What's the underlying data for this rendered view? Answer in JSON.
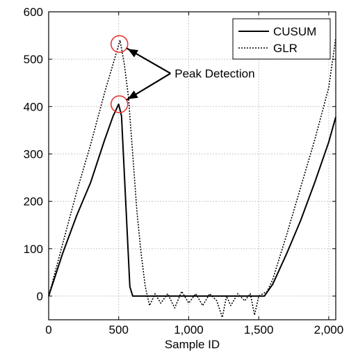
{
  "chart_data": {
    "type": "line",
    "title": "",
    "xlabel": "Sample ID",
    "ylabel": "",
    "xlim": [
      0,
      2050
    ],
    "ylim": [
      -50,
      600
    ],
    "grid": true,
    "legend_position": "top-right",
    "x_ticks": [
      0,
      500,
      1000,
      1500,
      2000
    ],
    "x_tick_labels": [
      "0",
      "500",
      "1,000",
      "1,500",
      "2,000"
    ],
    "y_ticks": [
      0,
      100,
      200,
      300,
      400,
      500,
      600
    ],
    "y_tick_labels": [
      "0",
      "100",
      "200",
      "300",
      "400",
      "500",
      "600"
    ],
    "series": [
      {
        "name": "CUSUM",
        "style": "solid",
        "color": "#000000",
        "x": [
          0,
          100,
          200,
          300,
          400,
          460,
          500,
          520,
          550,
          580,
          600,
          700,
          800,
          900,
          1000,
          1100,
          1200,
          1300,
          1400,
          1500,
          1540,
          1600,
          1700,
          1800,
          1900,
          2000,
          2050
        ],
        "y": [
          0,
          90,
          170,
          240,
          330,
          380,
          405,
          380,
          200,
          20,
          0,
          0,
          0,
          0,
          0,
          0,
          0,
          0,
          0,
          0,
          0,
          25,
          90,
          160,
          240,
          325,
          378
        ]
      },
      {
        "name": "GLR",
        "style": "dotted",
        "color": "#000000",
        "x": [
          0,
          100,
          200,
          300,
          400,
          480,
          510,
          540,
          570,
          600,
          630,
          660,
          690,
          720,
          760,
          800,
          850,
          900,
          950,
          1000,
          1050,
          1100,
          1150,
          1200,
          1240,
          1270,
          1300,
          1350,
          1400,
          1440,
          1470,
          1500,
          1530,
          1560,
          1600,
          1700,
          1800,
          1900,
          2000,
          2050
        ],
        "y": [
          0,
          110,
          220,
          320,
          430,
          510,
          540,
          490,
          420,
          300,
          180,
          90,
          20,
          -20,
          5,
          -15,
          5,
          -25,
          10,
          -15,
          5,
          -20,
          5,
          -10,
          -45,
          0,
          -20,
          5,
          -10,
          5,
          -40,
          0,
          5,
          10,
          35,
          130,
          230,
          330,
          440,
          545
        ]
      }
    ],
    "annotation": {
      "text": "Peak Detection",
      "targets": [
        {
          "x": 505,
          "y": 532
        },
        {
          "x": 505,
          "y": 405
        }
      ],
      "label_anchor": {
        "x": 870,
        "y": 470
      }
    }
  }
}
